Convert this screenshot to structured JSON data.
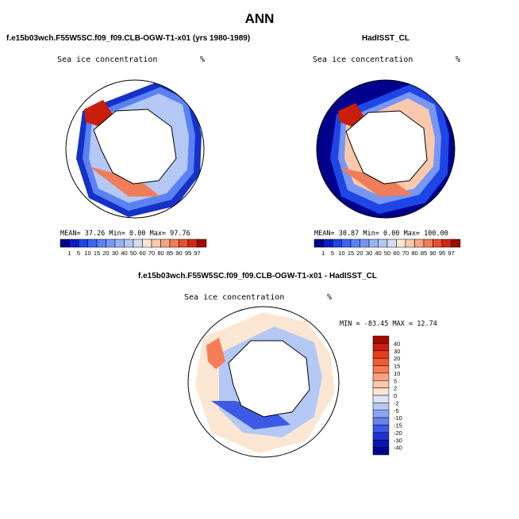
{
  "page": {
    "main_title": "ANN"
  },
  "panels": {
    "left": {
      "case_title": "f.e15b03wch.F55W5SC.f09_f09.CLB-OGW-T1-x01 (yrs 1980-1989)",
      "subtitle": "Sea ice concentration",
      "units": "%",
      "stats": "MEAN=  37.26  Min=   0.00  Max=  97.76"
    },
    "right": {
      "case_title": "HadISST_CL",
      "subtitle": "Sea ice concentration",
      "units": "%",
      "stats": "MEAN=  30.87  Min=   0.00  Max= 100.00"
    },
    "diff": {
      "case_title": "f.e15b03wch.F55W5SC.f09_f09.CLB-OGW-T1-x01 - HadISST_CL",
      "subtitle": "Sea ice concentration",
      "units": "%",
      "stats": "MIN = -83.45  MAX =  12.74"
    }
  },
  "colorbars": {
    "top": {
      "labels": [
        "1",
        "5",
        "10",
        "15",
        "20",
        "30",
        "40",
        "50",
        "60",
        "70",
        "80",
        "85",
        "90",
        "95",
        "97"
      ],
      "colors": [
        "#00008C",
        "#0A1EC8",
        "#1E46E6",
        "#3C64F0",
        "#5A82F5",
        "#7896F5",
        "#96B4F5",
        "#B4C8F5",
        "#D2DCF5",
        "#FAE6D2",
        "#FAC8AA",
        "#F5A582",
        "#F07D5A",
        "#E65032",
        "#D22814",
        "#A00A00"
      ]
    },
    "diff": {
      "labels": [
        "40",
        "30",
        "20",
        "15",
        "10",
        "5",
        "2",
        "0",
        "-2",
        "-5",
        "-10",
        "-15",
        "-20",
        "-30",
        "-40"
      ],
      "colors": [
        "#A00A00",
        "#C81E0A",
        "#E63C1E",
        "#F05A32",
        "#F57D55",
        "#FAA07D",
        "#FAC8AA",
        "#FAE6D2",
        "#DCE6F5",
        "#B4C8F5",
        "#8CA5F0",
        "#6482F0",
        "#3C5AE6",
        "#1E32D2",
        "#0A14B4",
        "#00008C"
      ]
    }
  },
  "chart_data": [
    {
      "type": "heatmap",
      "title": "Sea ice concentration",
      "units": "%",
      "case": "f.e15b03wch.F55W5SC.f09_f09.CLB-OGW-T1-x01 (yrs 1980-1989)",
      "projection": "south polar stereographic",
      "mean": 37.26,
      "min": 0.0,
      "max": 97.76,
      "levels": [
        1,
        5,
        10,
        15,
        20,
        30,
        40,
        50,
        60,
        70,
        80,
        85,
        90,
        95,
        97
      ]
    },
    {
      "type": "heatmap",
      "title": "Sea ice concentration",
      "units": "%",
      "case": "HadISST_CL",
      "projection": "south polar stereographic",
      "mean": 30.87,
      "min": 0.0,
      "max": 100.0,
      "levels": [
        1,
        5,
        10,
        15,
        20,
        30,
        40,
        50,
        60,
        70,
        80,
        85,
        90,
        95,
        97
      ]
    },
    {
      "type": "heatmap",
      "title": "Sea ice concentration",
      "units": "%",
      "case": "f.e15b03wch.F55W5SC.f09_f09.CLB-OGW-T1-x01 - HadISST_CL",
      "projection": "south polar stereographic",
      "min": -83.45,
      "max": 12.74,
      "levels": [
        -40,
        -30,
        -20,
        -15,
        -10,
        -5,
        -2,
        0,
        2,
        5,
        10,
        15,
        20,
        30,
        40
      ]
    }
  ]
}
